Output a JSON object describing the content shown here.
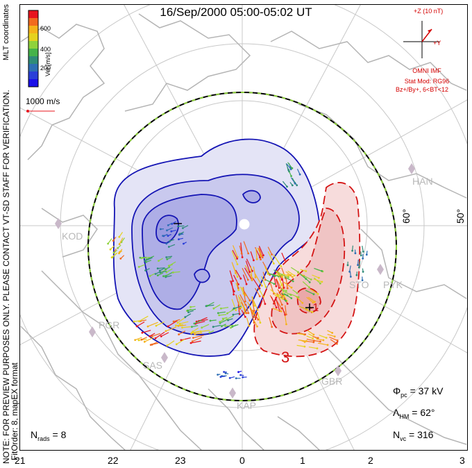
{
  "title": "16/Sep/2000 05:00-05:02 UT",
  "coordinates_label": "MLT coordinates",
  "note": "NOTE: FOR PREVIEW PURPOSES ONLY. PLEASE CONTACT VT-SD STAFF FOR VERIFICATION.",
  "fit_order": "FitOrder: 8, mapEX format",
  "legend": {
    "unit_label": "Vel [m/s]",
    "ticks": [
      "600",
      "400",
      "200"
    ],
    "colors": [
      "#e8141e",
      "#f26a1e",
      "#f5b21a",
      "#e6d21e",
      "#8fd23c",
      "#45b34a",
      "#2f8c78",
      "#2e6fb4",
      "#2a3fd8",
      "#1a10e8"
    ],
    "ref_vector": "1000 m/s"
  },
  "imf": {
    "bz_label": "+Z (10 nT)",
    "by_label": "+Y",
    "source": "OMNI IMF",
    "stat_mod": "Stat Mod: RG96",
    "condition": "Bz+/By+, 6<BT<12"
  },
  "stats": {
    "phi_pc_label": "Φ",
    "phi_pc_sub": "pc",
    "phi_pc_value": " = 37 kV",
    "lambda_label": "Λ",
    "lambda_sub": "HM",
    "lambda_value": " = 62°",
    "nvc_label": "N",
    "nvc_sub": "vc",
    "nvc_value": " = 316",
    "nrads_label": "N",
    "nrads_sub": "rads",
    "nrads_value": " = 8"
  },
  "mlt_ticks": [
    "21",
    "22",
    "23",
    "0",
    "1",
    "2",
    "3"
  ],
  "lat_labels": [
    "60°",
    "50°"
  ],
  "sites": [
    "HAN",
    "KOD",
    "STO",
    "PYK",
    "PGR",
    "SAS",
    "GBR",
    "KAP"
  ],
  "contour_labels": [
    "3",
    "-1"
  ],
  "colors": {
    "negative_cell": "#1414b4",
    "positive_cell": "#d41414",
    "map_lines": "#b4b4b4",
    "grid_lines": "#c8c8c8"
  }
}
